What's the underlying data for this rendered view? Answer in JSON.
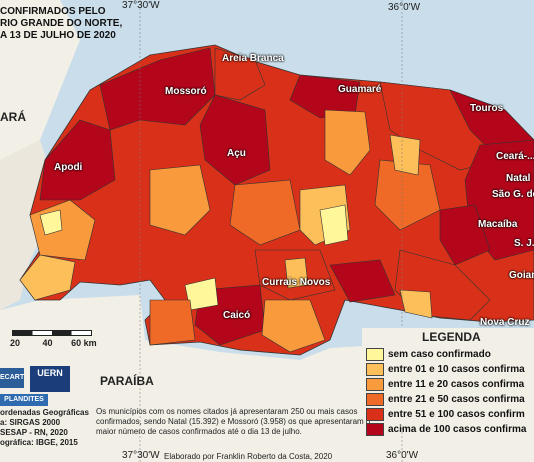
{
  "title": "CONFIRMADOS PELO\n   RIO GRANDE DO NORTE,\nA 13 DE JULHO DE 2020",
  "coordinates": {
    "top_left": "37°30'W",
    "top_right": "36°0'W",
    "bottom_left": "37°30'W",
    "bottom_right": "36°0'W"
  },
  "states": {
    "west": "ARÁ",
    "south": "PARAÍBA"
  },
  "cities": [
    {
      "name": "Areia Branca"
    },
    {
      "name": "Mossoró"
    },
    {
      "name": "Guamaré"
    },
    {
      "name": "Touros"
    },
    {
      "name": "Açu"
    },
    {
      "name": "Apodi"
    },
    {
      "name": "Ceará-..."
    },
    {
      "name": "Natal"
    },
    {
      "name": "São G. do"
    },
    {
      "name": "Macaíba"
    },
    {
      "name": "S. J."
    },
    {
      "name": "Goian"
    },
    {
      "name": "Currais Novos"
    },
    {
      "name": "Caicó"
    },
    {
      "name": "Nova Cruz"
    }
  ],
  "legend": {
    "title": "LEGENDA",
    "items": [
      {
        "label": "sem caso confirmado",
        "color": "#fff79a"
      },
      {
        "label": "entre 01 e 10 casos confirma",
        "color": "#fdbf5a"
      },
      {
        "label": "entre 11 e 20 casos confirma",
        "color": "#f99a3d"
      },
      {
        "label": "entre 21 e 50 casos confirma",
        "color": "#ee6a26"
      },
      {
        "label": "entre 51 e 100 casos confirm",
        "color": "#d93119"
      },
      {
        "label": "acima de 100 casos confirma",
        "color": "#b3061b"
      }
    ]
  },
  "scale": {
    "t1": "20",
    "t2": "40",
    "t3": "60 km"
  },
  "credits": "ordenadas Geográficas\na: SIRGAS 2000\nSESAP - RN, 2020\nográfica: IBGE, 2015",
  "note": "Os municípios com os nomes citados já apresentaram 250 ou mais casos confirmados, sendo Natal (15.392) e Mossoró (3.958) os que apresentaram o maior número de casos confirmados até o dia 13 de julho.",
  "author": "Elaborado por Franklin Roberto da Costa, 2020",
  "logos": {
    "a": "ECART",
    "b": "UERN",
    "c": "PLANDITES"
  }
}
